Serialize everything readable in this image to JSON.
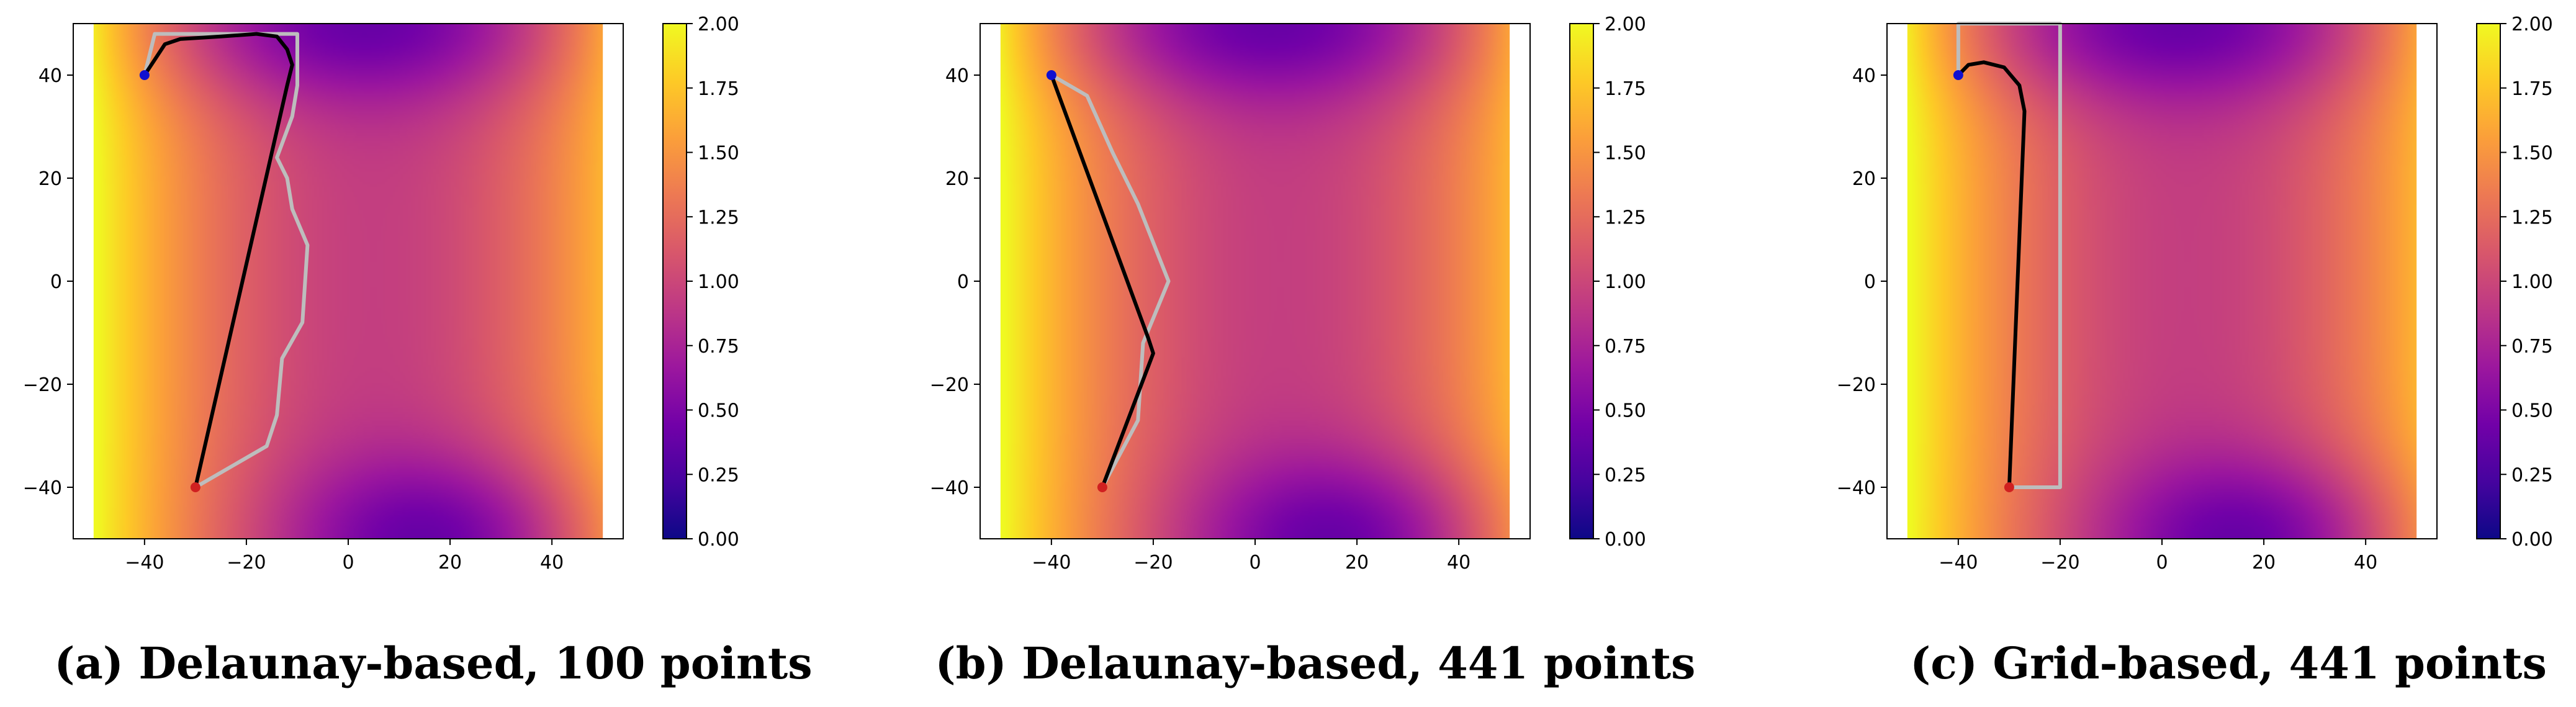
{
  "colormap": {
    "name": "plasma",
    "stops": [
      "#0d0887",
      "#46039f",
      "#7201a8",
      "#9c179e",
      "#bd3786",
      "#d8576b",
      "#ed7953",
      "#fb9f3a",
      "#fdca26",
      "#f0f921"
    ]
  },
  "colors": {
    "path": "#000000",
    "reference_path": "#bdbdbd",
    "start_point": "#1010d0",
    "end_point": "#d02020"
  },
  "chart_data": [
    {
      "type": "heatmap",
      "caption_letter": "a",
      "caption_text": "Delaunay-based, 100 points",
      "xlim": [
        -54,
        54
      ],
      "ylim": [
        -50,
        50
      ],
      "xticks": [
        -40,
        -20,
        0,
        20,
        40
      ],
      "yticks": [
        -40,
        -20,
        0,
        20,
        40
      ],
      "colorbar_range": [
        0,
        2
      ],
      "colorbar_ticks": [
        "0.00",
        "0.25",
        "0.50",
        "0.75",
        "1.00",
        "1.25",
        "1.50",
        "1.75",
        "2.00"
      ],
      "field_extent": {
        "x": [
          -50,
          50
        ],
        "y": [
          -50,
          50
        ]
      },
      "start": [
        -40,
        40
      ],
      "end": [
        -30,
        -40
      ],
      "path": [
        [
          -40,
          40
        ],
        [
          -38,
          43
        ],
        [
          -36,
          46
        ],
        [
          -33,
          47
        ],
        [
          -25,
          47.5
        ],
        [
          -18,
          48
        ],
        [
          -14,
          47.5
        ],
        [
          -12,
          45
        ],
        [
          -11,
          42
        ],
        [
          -12,
          38
        ],
        [
          -30,
          -40
        ]
      ],
      "reference_path": [
        [
          -30,
          -40
        ],
        [
          -16,
          -32
        ],
        [
          -14,
          -26
        ],
        [
          -13,
          -15
        ],
        [
          -9,
          -8
        ],
        [
          -8,
          7
        ],
        [
          -11,
          14
        ],
        [
          -12,
          20
        ],
        [
          -14,
          24
        ],
        [
          -11,
          32
        ],
        [
          -10,
          38
        ],
        [
          -10,
          48
        ],
        [
          -38,
          48
        ],
        [
          -40,
          40
        ]
      ]
    },
    {
      "type": "heatmap",
      "caption_letter": "b",
      "caption_text": "Delaunay-based, 441 points",
      "xlim": [
        -54,
        54
      ],
      "ylim": [
        -50,
        50
      ],
      "xticks": [
        -40,
        -20,
        0,
        20,
        40
      ],
      "yticks": [
        -40,
        -20,
        0,
        20,
        40
      ],
      "colorbar_range": [
        0,
        2
      ],
      "colorbar_ticks": [
        "0.00",
        "0.25",
        "0.50",
        "0.75",
        "1.00",
        "1.25",
        "1.50",
        "1.75",
        "2.00"
      ],
      "field_extent": {
        "x": [
          -50,
          50
        ],
        "y": [
          -50,
          50
        ]
      },
      "start": [
        -40,
        40
      ],
      "end": [
        -30,
        -40
      ],
      "path": [
        [
          -40,
          40
        ],
        [
          -21,
          -11
        ],
        [
          -20,
          -14
        ],
        [
          -30,
          -40
        ]
      ],
      "reference_path": [
        [
          -40,
          40
        ],
        [
          -33,
          36
        ],
        [
          -28,
          25
        ],
        [
          -23,
          15
        ],
        [
          -17,
          0
        ],
        [
          -22,
          -12
        ],
        [
          -23,
          -27
        ],
        [
          -30,
          -40
        ]
      ]
    },
    {
      "type": "heatmap",
      "caption_letter": "c",
      "caption_text": "Grid-based, 441 points",
      "xlim": [
        -54,
        54
      ],
      "ylim": [
        -50,
        50
      ],
      "xticks": [
        -40,
        -20,
        0,
        20,
        40
      ],
      "yticks": [
        -40,
        -20,
        0,
        20,
        40
      ],
      "colorbar_range": [
        0,
        2
      ],
      "colorbar_ticks": [
        "0.00",
        "0.25",
        "0.50",
        "0.75",
        "1.00",
        "1.25",
        "1.50",
        "1.75",
        "2.00"
      ],
      "field_extent": {
        "x": [
          -50,
          50
        ],
        "y": [
          -50,
          50
        ]
      },
      "start": [
        -40,
        40
      ],
      "end": [
        -30,
        -40
      ],
      "path": [
        [
          -40,
          40
        ],
        [
          -38,
          42
        ],
        [
          -35,
          42.5
        ],
        [
          -31,
          41.5
        ],
        [
          -28,
          38
        ],
        [
          -27,
          33
        ],
        [
          -30,
          -40
        ]
      ],
      "reference_path": [
        [
          -30,
          -40
        ],
        [
          -20,
          -40
        ],
        [
          -20,
          50
        ],
        [
          -40,
          50
        ],
        [
          -40,
          40
        ]
      ]
    }
  ]
}
